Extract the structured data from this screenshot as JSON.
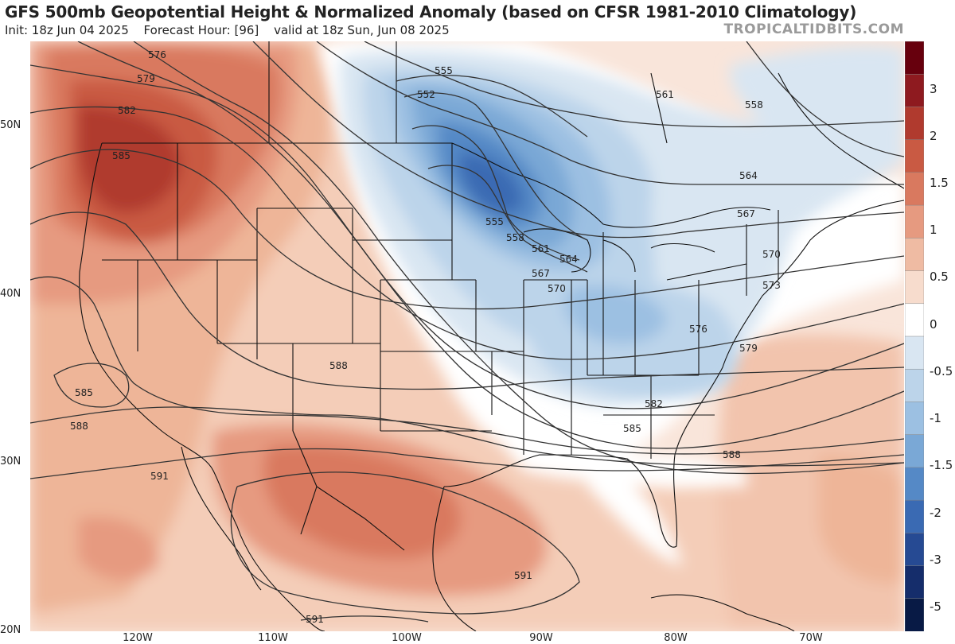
{
  "header": {
    "title": "GFS 500mb Geopotential Height & Normalized Anomaly (based on CFSR 1981-2010 Climatology)",
    "init": "Init: 18z Jun 04 2025",
    "forecast_hour": "Forecast Hour: [96]",
    "valid": "valid at 18z Sun, Jun 08 2025",
    "brand": "TROPICALTIDBITS.COM"
  },
  "axes": {
    "lat_labels": [
      "50N",
      "40N",
      "30N",
      "20N"
    ],
    "lon_labels": [
      "120W",
      "110W",
      "100W",
      "90W",
      "80W",
      "70W"
    ]
  },
  "colorbar": {
    "labels": [
      "3",
      "2",
      "1.5",
      "1",
      "0.5",
      "0",
      "-0.5",
      "-1",
      "-1.5",
      "-2",
      "-3",
      "-5"
    ],
    "colors": [
      "#67000d",
      "#8e1a1f",
      "#b03a2e",
      "#c95a43",
      "#d9795f",
      "#e69a80",
      "#efbba3",
      "#f7dccd",
      "#ffffff",
      "#d9e6f2",
      "#bcd4ea",
      "#9cc0e2",
      "#7aa8d6",
      "#5589c6",
      "#3a6ab3",
      "#264a93",
      "#152d6b",
      "#081a45"
    ]
  },
  "contours": {
    "labels": [
      "576",
      "579",
      "582",
      "585",
      "555",
      "552",
      "555",
      "558",
      "561",
      "564",
      "567",
      "570",
      "573",
      "576",
      "579",
      "582",
      "585",
      "588",
      "558",
      "561",
      "564",
      "567",
      "570",
      "588",
      "585",
      "588",
      "591",
      "591",
      "591"
    ]
  }
}
